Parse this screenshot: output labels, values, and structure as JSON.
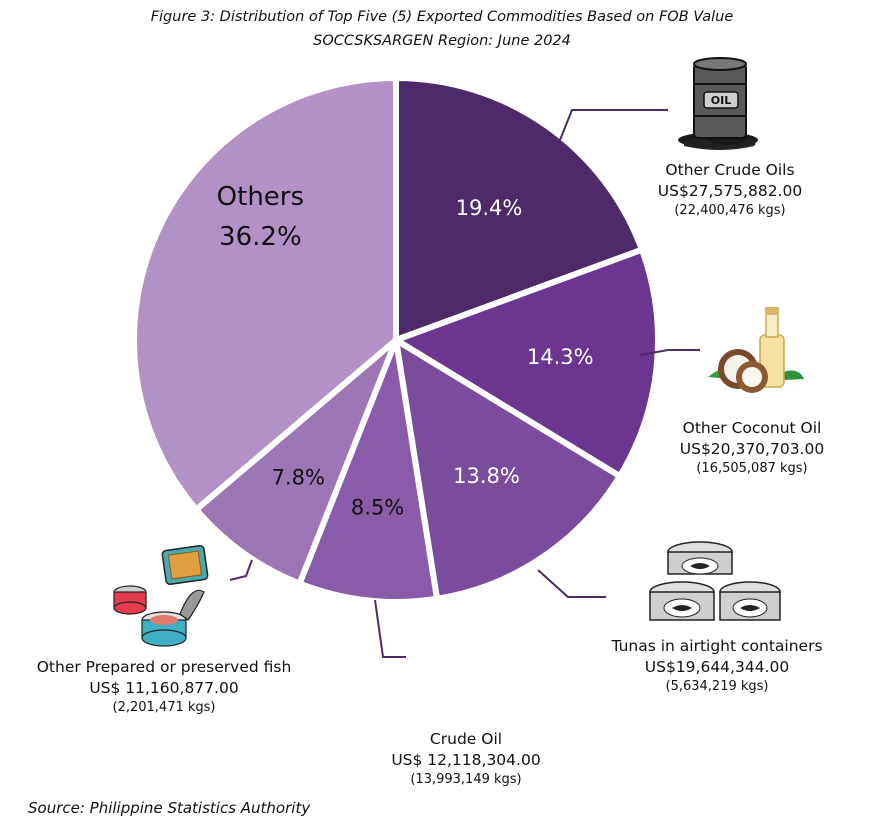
{
  "title": "Figure 3: Distribution of Top Five (5) Exported Commodities Based on FOB Value",
  "subtitle": "SOCCSKSARGEN Region: June 2024",
  "source": "Source: Philippine Statistics Authority",
  "icons": [
    "oil-barrel-icon",
    "coconut-oil-icon",
    "canned-tuna-icon",
    "canned-fish-icon"
  ],
  "chart_data": {
    "type": "pie",
    "slices": [
      {
        "percent_label": "19.4%",
        "value": 19.4,
        "color": "#4f2a69",
        "name": "Other Crude Oils",
        "fob": "US$27,575,882.00",
        "kgs": "(22,400,476 kgs)"
      },
      {
        "percent_label": "14.3%",
        "value": 14.3,
        "color": "#6b3590",
        "name": "Other Coconut Oil",
        "fob": "US$20,370,703.00",
        "kgs": "(16,505,087 kgs)"
      },
      {
        "percent_label": "13.8%",
        "value": 13.8,
        "color": "#7c4c9c",
        "name": "Tunas in airtight containers",
        "fob": "US$19,644,344.00",
        "kgs": "(5,634,219 kgs)"
      },
      {
        "percent_label": "8.5%",
        "value": 8.5,
        "color": "#8a5ba8",
        "name": "Crude Oil",
        "fob": "US$ 12,118,304.00",
        "kgs": "(13,993,149 kgs)"
      },
      {
        "percent_label": "7.8%",
        "value": 7.8,
        "color": "#9d76b6",
        "name": "Other Prepared or preserved fish",
        "fob": "US$ 11,160,877.00",
        "kgs": "(2,201,471 kgs)"
      },
      {
        "percent_label": "36.2%",
        "value": 36.2,
        "color": "#b390c6",
        "name": "Others",
        "fob": "",
        "kgs": ""
      }
    ]
  }
}
